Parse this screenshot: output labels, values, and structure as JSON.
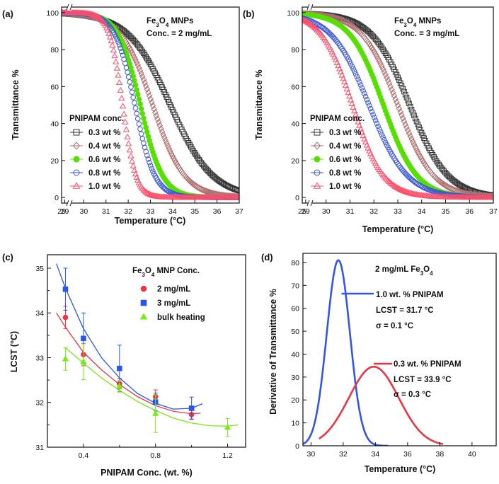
{
  "chart_data": [
    {
      "panel": "(a)",
      "type": "scatter",
      "title": "Fe3O4 MNPs",
      "subtitle": "Conc. = 2 mg/mL",
      "xlabel": "Temperature (°C)",
      "ylabel": "Transmittance %",
      "xticks": [
        "25",
        "29",
        "30",
        "31",
        "32",
        "33",
        "34",
        "35",
        "36",
        "37"
      ],
      "yticks": [
        "0",
        "20",
        "40",
        "60",
        "80",
        "100"
      ],
      "xlim": [
        29,
        37
      ],
      "ylim": [
        -3,
        103
      ],
      "legend_title": "PNIPAM conc.",
      "series": [
        {
          "name": "0.3 wt %",
          "marker": "square",
          "color": "#333333",
          "filled": false,
          "lcst": 33.9,
          "sigma": 0.95
        },
        {
          "name": "0.4 wt %",
          "marker": "diamond",
          "color": "#b07070",
          "filled": false,
          "lcst": 33.1,
          "sigma": 0.72
        },
        {
          "name": "0.6 wt %",
          "marker": "circle",
          "color": "#55e000",
          "filled": true,
          "lcst": 32.55,
          "sigma": 0.5
        },
        {
          "name": "0.8 wt %",
          "marker": "circle",
          "color": "#3a55dd",
          "filled": false,
          "lcst": 32.3,
          "sigma": 0.45
        },
        {
          "name": "1.0 wt %",
          "marker": "triangle",
          "color": "#ff4f6a",
          "filled": false,
          "lcst": 31.75,
          "sigma": 0.3
        }
      ],
      "extra_series": {
        "name": "blue tail",
        "color": "#2f5cff",
        "x_range": [
          34.4,
          37
        ],
        "value": 0
      }
    },
    {
      "panel": "(b)",
      "type": "scatter",
      "title": "Fe3O4 MNPs",
      "subtitle": "Conc. = 3 mg/mL",
      "xlabel": "Temperature (°C)",
      "ylabel": "Transmittance %",
      "xticks": [
        "25",
        "29",
        "30",
        "31",
        "32",
        "33",
        "34",
        "35",
        "36",
        "37"
      ],
      "yticks": [
        "0",
        "20",
        "40",
        "60",
        "80",
        "100"
      ],
      "xlim": [
        29,
        37
      ],
      "ylim": [
        -3,
        103
      ],
      "legend_title": "PNIPAM conc.",
      "series": [
        {
          "name": "0.3 wt %",
          "marker": "square",
          "color": "#333333",
          "filled": false,
          "lcst": 33.5,
          "sigma": 0.8
        },
        {
          "name": "0.4 wt %",
          "marker": "diamond",
          "color": "#b07070",
          "filled": false,
          "lcst": 33.0,
          "sigma": 0.75
        },
        {
          "name": "0.6 wt %",
          "marker": "circle",
          "color": "#55e000",
          "filled": true,
          "lcst": 32.4,
          "sigma": 0.7
        },
        {
          "name": "0.8 wt %",
          "marker": "circle",
          "color": "#3a55dd",
          "filled": false,
          "lcst": 31.8,
          "sigma": 0.8
        },
        {
          "name": "1.0 wt %",
          "marker": "triangle",
          "color": "#ff4f6a",
          "filled": false,
          "lcst": 31.1,
          "sigma": 0.65
        }
      ]
    },
    {
      "panel": "(c)",
      "type": "scatter",
      "xlabel": "PNIPAM Conc. (wt. %)",
      "ylabel": "LCST (°C)",
      "xticks": [
        "0.4",
        "0.8",
        "1.2"
      ],
      "yticks": [
        "31",
        "32",
        "33",
        "34",
        "35"
      ],
      "xlim": [
        0.2,
        1.3
      ],
      "ylim": [
        31,
        35.3
      ],
      "legend_title": "Fe3O4 MNP Conc.",
      "series": [
        {
          "name": "2 mg/mL",
          "color": "#ee3344",
          "x": [
            0.3,
            0.4,
            0.6,
            0.8,
            1.0
          ],
          "y": [
            33.9,
            33.07,
            32.42,
            32.13,
            31.73
          ],
          "err": [
            0.25,
            0.25,
            0.12,
            0.15,
            0.1
          ],
          "fit": [
            [
              0.25,
              34.0
            ],
            [
              0.3,
              33.68
            ],
            [
              0.4,
              33.12
            ],
            [
              0.5,
              32.73
            ],
            [
              0.6,
              32.4
            ],
            [
              0.7,
              32.13
            ],
            [
              0.8,
              31.93
            ],
            [
              0.9,
              31.8
            ],
            [
              1.0,
              31.75
            ],
            [
              1.05,
              31.76
            ]
          ]
        },
        {
          "name": "3 mg/mL",
          "color": "#2a55ee",
          "x": [
            0.3,
            0.4,
            0.6,
            0.8,
            1.0
          ],
          "y": [
            34.53,
            33.43,
            32.76,
            32.01,
            31.87
          ],
          "err": [
            0.47,
            0.57,
            0.52,
            0.2,
            0.25
          ],
          "fit": [
            [
              0.25,
              35.1
            ],
            [
              0.3,
              34.55
            ],
            [
              0.4,
              33.65
            ],
            [
              0.5,
              33.0
            ],
            [
              0.6,
              32.55
            ],
            [
              0.7,
              32.2
            ],
            [
              0.8,
              31.98
            ],
            [
              0.9,
              31.85
            ],
            [
              1.0,
              31.87
            ],
            [
              1.06,
              31.97
            ]
          ]
        },
        {
          "name": "bulk heating",
          "color": "#77ee11",
          "x": [
            0.3,
            0.4,
            0.6,
            0.8,
            1.2
          ],
          "y": [
            32.97,
            32.91,
            32.36,
            31.75,
            31.44
          ],
          "err": [
            0.25,
            0.4,
            0.13,
            0.42,
            0.2
          ],
          "fit": [
            [
              0.3,
              33.22
            ],
            [
              0.4,
              32.88
            ],
            [
              0.5,
              32.55
            ],
            [
              0.6,
              32.27
            ],
            [
              0.7,
              32.02
            ],
            [
              0.8,
              31.82
            ],
            [
              0.9,
              31.65
            ],
            [
              1.0,
              31.54
            ],
            [
              1.1,
              31.48
            ],
            [
              1.2,
              31.47
            ],
            [
              1.26,
              31.5
            ]
          ]
        }
      ]
    },
    {
      "panel": "(d)",
      "type": "line",
      "title": "2 mg/mL Fe3O4",
      "xlabel": "Temperature (°C)",
      "ylabel": "Derivative of Transmittance %",
      "xticks": [
        "30",
        "32",
        "34",
        "36",
        "38",
        "40"
      ],
      "yticks": [
        "0",
        "10",
        "20",
        "30",
        "40",
        "50",
        "60",
        "70",
        "80"
      ],
      "xlim": [
        29.5,
        41.5
      ],
      "ylim": [
        0,
        84
      ],
      "series": [
        {
          "name": "1.0 wt. % PNIPAM",
          "color": "#3355ee",
          "peak_x": 31.7,
          "peak_y": 81,
          "width": 0.72,
          "x_range": [
            29.5,
            34.8
          ],
          "lcst_label": "LCST = 31.7 °C",
          "sigma_label": "σ = 0.1 °C"
        },
        {
          "name": "0.3 wt. % PNIPAM",
          "color": "#ee3344",
          "peak_x": 33.9,
          "peak_y": 34.5,
          "width": 1.55,
          "x_range": [
            30.5,
            38.2
          ],
          "lcst_label": "LCST = 33.9 °C",
          "sigma_label": "σ = 0.3 °C"
        }
      ]
    }
  ]
}
